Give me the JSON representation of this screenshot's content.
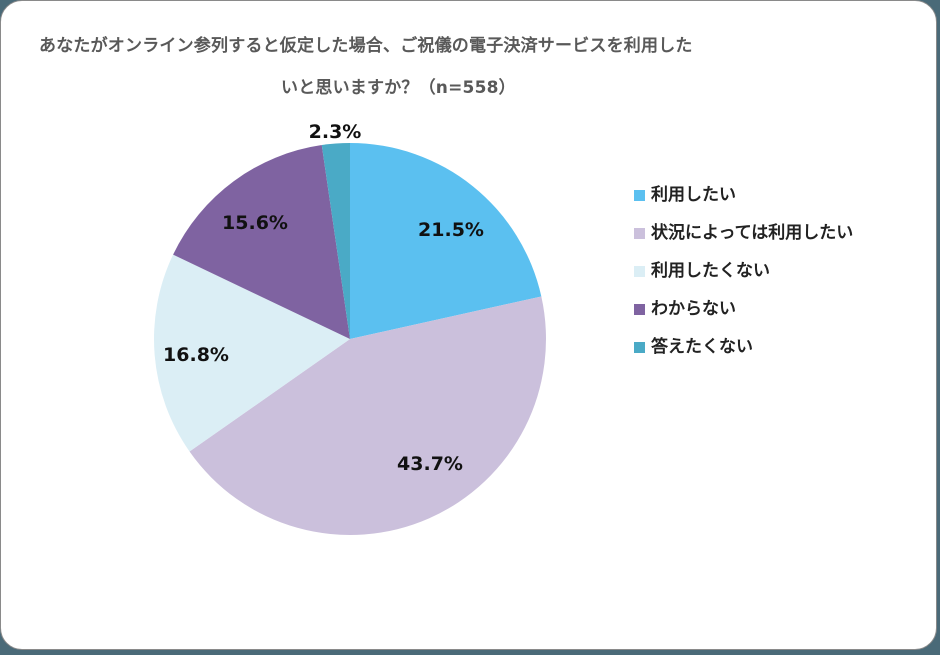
{
  "title": {
    "line1": "あなたがオンライン参列すると仮定した場合、ご祝儀の電子決済サービスを利用した",
    "line2": "いと思いますか？（n=558）"
  },
  "legend": {
    "items": [
      {
        "label": "利用したい",
        "color": "#5bc0f0"
      },
      {
        "label": "状況によっては利用したい",
        "color": "#cbc0dc"
      },
      {
        "label": "利用したくない",
        "color": "#dbeef5"
      },
      {
        "label": "わからない",
        "color": "#7f63a1"
      },
      {
        "label": "答えたくない",
        "color": "#4aaac6"
      }
    ]
  },
  "labels": {
    "s0": "21.5%",
    "s1": "43.7%",
    "s2": "16.8%",
    "s3": "15.6%",
    "s4": "2.3%"
  },
  "chart_data": {
    "type": "pie",
    "title": "あなたがオンライン参列すると仮定した場合、ご祝儀の電子決済サービスを利用したいと思いますか？（n=558）",
    "categories": [
      "利用したい",
      "状況によっては利用したい",
      "利用したくない",
      "わからない",
      "答えたくない"
    ],
    "values": [
      21.5,
      43.7,
      16.8,
      15.6,
      2.3
    ],
    "unit": "%",
    "n": 558,
    "colors": [
      "#5bc0f0",
      "#cbc0dc",
      "#dbeef5",
      "#7f63a1",
      "#4aaac6"
    ],
    "start_angle": "12 o'clock",
    "direction": "clockwise",
    "legend_position": "right"
  }
}
